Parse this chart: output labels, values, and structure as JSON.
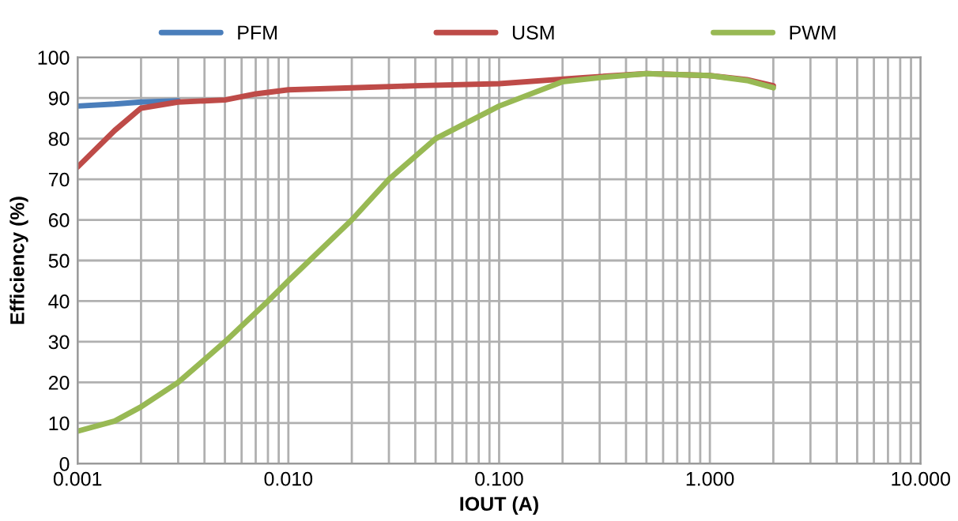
{
  "chart_data": {
    "type": "line",
    "xlabel": "IOUT (A)",
    "ylabel": "Efficiency (%)",
    "log": "x",
    "grid": true,
    "legend": "top",
    "xlim": [
      0.001,
      10
    ],
    "xticks": [
      {
        "value": 0.001,
        "label": "0.001"
      },
      {
        "value": 0.01,
        "label": "0.010"
      },
      {
        "value": 0.1,
        "label": "0.100"
      },
      {
        "value": 1,
        "label": "1.000"
      },
      {
        "value": 10,
        "label": "10.000"
      }
    ],
    "ylim": [
      0,
      100
    ],
    "yticks": [
      0,
      10,
      20,
      30,
      40,
      50,
      60,
      70,
      80,
      90,
      100
    ],
    "series": [
      {
        "name": "PFM",
        "color": "#4a7ebb",
        "x": [
          0.001,
          0.0015,
          0.002,
          0.003
        ],
        "values": [
          88,
          88.5,
          89,
          89.3
        ]
      },
      {
        "name": "USM",
        "color": "#be4b48",
        "x": [
          0.001,
          0.0015,
          0.002,
          0.003,
          0.005,
          0.007,
          0.01,
          0.02,
          0.04,
          0.1,
          0.25,
          0.5,
          1,
          1.5,
          2
        ],
        "values": [
          73,
          82,
          87.5,
          89,
          89.5,
          91,
          92,
          92.5,
          93,
          93.5,
          95,
          96,
          95.5,
          94.5,
          93
        ]
      },
      {
        "name": "PWM",
        "color": "#98b954",
        "x": [
          0.001,
          0.0015,
          0.002,
          0.003,
          0.005,
          0.008,
          0.01,
          0.02,
          0.03,
          0.05,
          0.1,
          0.2,
          0.3,
          0.5,
          1,
          1.5,
          2
        ],
        "values": [
          8,
          10.5,
          14,
          20,
          30,
          40,
          45,
          60,
          70,
          80,
          88,
          94,
          95,
          96,
          95.5,
          94.3,
          92.5
        ]
      }
    ]
  }
}
